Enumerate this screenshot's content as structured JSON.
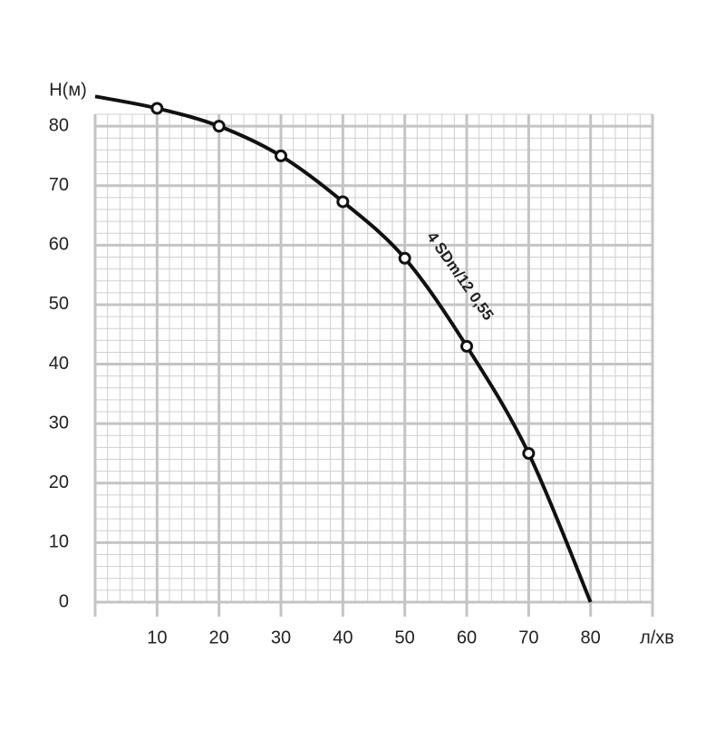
{
  "chart_data": {
    "type": "line",
    "y_label": "H(м)",
    "x_label": "л/хв",
    "annotation": "4 SDm/12 0,55",
    "xlim": [
      0,
      90
    ],
    "ylim": [
      0,
      82
    ],
    "xticks": [
      10,
      20,
      30,
      40,
      50,
      60,
      70,
      80
    ],
    "yticks": [
      0,
      10,
      20,
      30,
      40,
      50,
      60,
      70,
      80
    ],
    "minor_step": 2,
    "grid": true,
    "series": [
      {
        "color": "#111111",
        "x": [
          0,
          10,
          20,
          30,
          40,
          50,
          60,
          70,
          80
        ],
        "values": [
          85,
          83,
          80,
          75,
          67.3,
          57.8,
          43,
          25,
          0
        ]
      },
      {
        "color": "#111111",
        "markers": true,
        "x": [
          10,
          20,
          30,
          40,
          50,
          60,
          70
        ],
        "values": [
          83,
          80,
          75,
          67.3,
          57.8,
          43,
          25
        ]
      }
    ]
  }
}
